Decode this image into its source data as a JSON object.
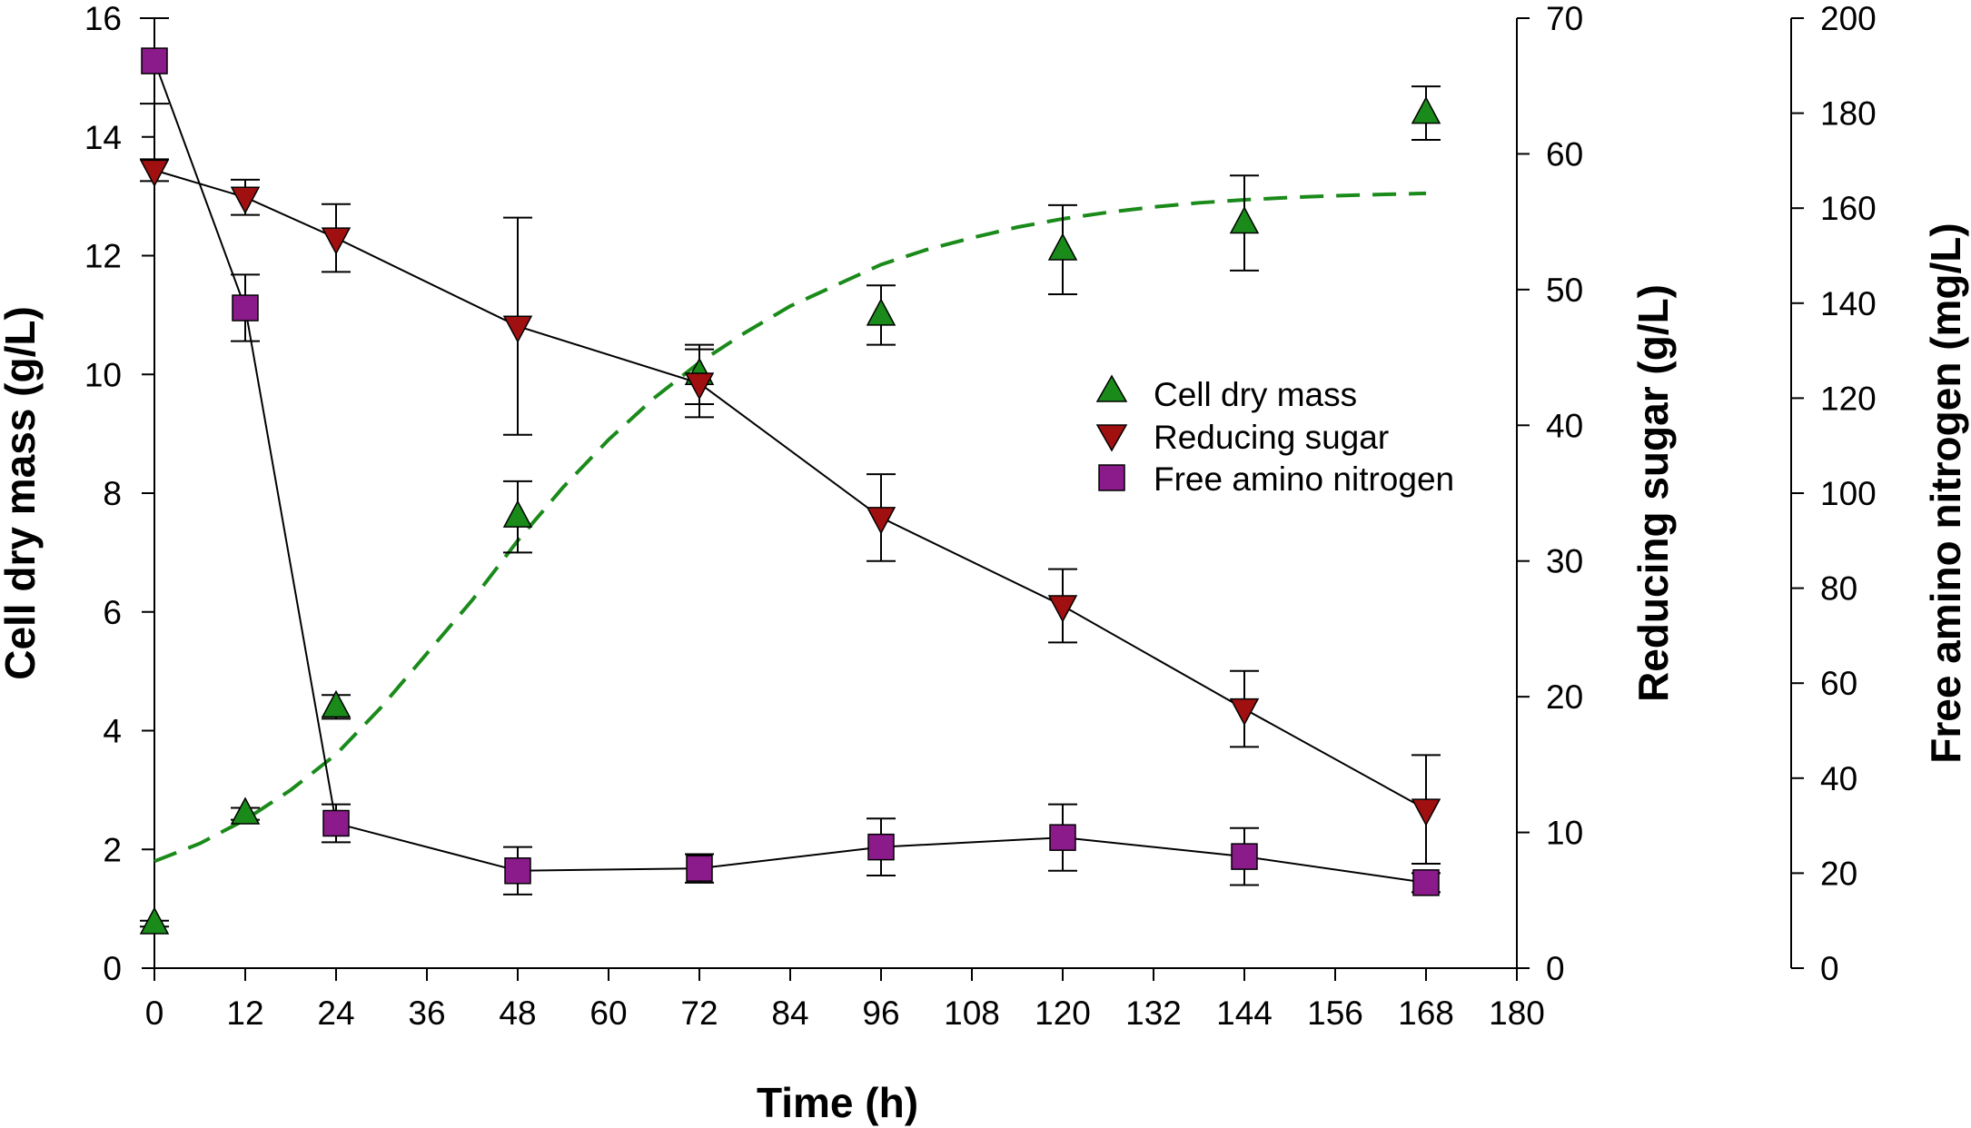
{
  "chart_data": {
    "type": "scatter",
    "x": [
      0,
      12,
      24,
      48,
      72,
      96,
      120,
      144,
      168
    ],
    "xlabel": "Time (h)",
    "xlim": [
      0,
      180
    ],
    "xticks": [
      0,
      12,
      24,
      36,
      48,
      60,
      72,
      84,
      96,
      108,
      120,
      132,
      144,
      156,
      168,
      180
    ],
    "axes": [
      {
        "id": "left",
        "label": "Cell dry mass (g/L)",
        "ylim": [
          0,
          16
        ],
        "ticks": [
          0,
          2,
          4,
          6,
          8,
          10,
          12,
          14,
          16
        ]
      },
      {
        "id": "right1",
        "label": "Reducing sugar (g/L)",
        "ylim": [
          0,
          70
        ],
        "ticks": [
          0,
          10,
          20,
          30,
          40,
          50,
          60,
          70
        ]
      },
      {
        "id": "right2",
        "label": "Free amino nitrogen (mg/L)",
        "ylim": [
          0,
          200
        ],
        "ticks": [
          0,
          20,
          40,
          60,
          80,
          100,
          120,
          140,
          160,
          180,
          200
        ]
      }
    ],
    "series": [
      {
        "name": "Cell dry mass",
        "axis": "left",
        "marker": "triangle-up",
        "color": "#1a8a1a",
        "line": false,
        "values": [
          0.75,
          2.6,
          4.4,
          7.6,
          10.0,
          11.0,
          12.1,
          12.55,
          14.4
        ],
        "errors": [
          0.05,
          0.1,
          0.2,
          0.6,
          0.5,
          0.5,
          0.75,
          0.8,
          0.45
        ]
      },
      {
        "name": "Reducing sugar",
        "axis": "right1",
        "marker": "triangle-down",
        "color": "#a01010",
        "line": true,
        "values": [
          58.8,
          56.8,
          53.8,
          47.3,
          43.1,
          33.2,
          26.7,
          19.1,
          11.7
        ],
        "errors": [
          0.8,
          1.3,
          2.5,
          8.0,
          2.5,
          3.2,
          2.7,
          2.8,
          4.0
        ]
      },
      {
        "name": "Free amino nitrogen",
        "axis": "right2",
        "marker": "square",
        "color": "#8b1a8b",
        "line": true,
        "values": [
          191,
          139,
          30.5,
          20.5,
          21,
          25.5,
          27.5,
          23.5,
          18
        ],
        "errors": [
          9,
          7,
          4,
          5,
          3,
          6,
          7,
          6,
          2
        ]
      },
      {
        "name": "Cell dry mass fit",
        "axis": "left",
        "type": "dashed-fit",
        "color": "#1a8a1a",
        "x": [
          0,
          6,
          12,
          18,
          24,
          30,
          36,
          42,
          48,
          54,
          60,
          66,
          72,
          78,
          84,
          90,
          96,
          102,
          108,
          114,
          120,
          126,
          132,
          138,
          144,
          150,
          156,
          162,
          168
        ],
        "values": [
          1.8,
          2.1,
          2.5,
          3.0,
          3.6,
          4.4,
          5.3,
          6.2,
          7.2,
          8.1,
          8.9,
          9.6,
          10.2,
          10.7,
          11.15,
          11.5,
          11.85,
          12.1,
          12.3,
          12.48,
          12.62,
          12.73,
          12.82,
          12.89,
          12.94,
          12.98,
          13.01,
          13.03,
          13.05
        ]
      }
    ],
    "legend": {
      "position": "center-right",
      "entries": [
        "Cell dry mass",
        "Reducing sugar",
        "Free amino nitrogen"
      ]
    }
  }
}
